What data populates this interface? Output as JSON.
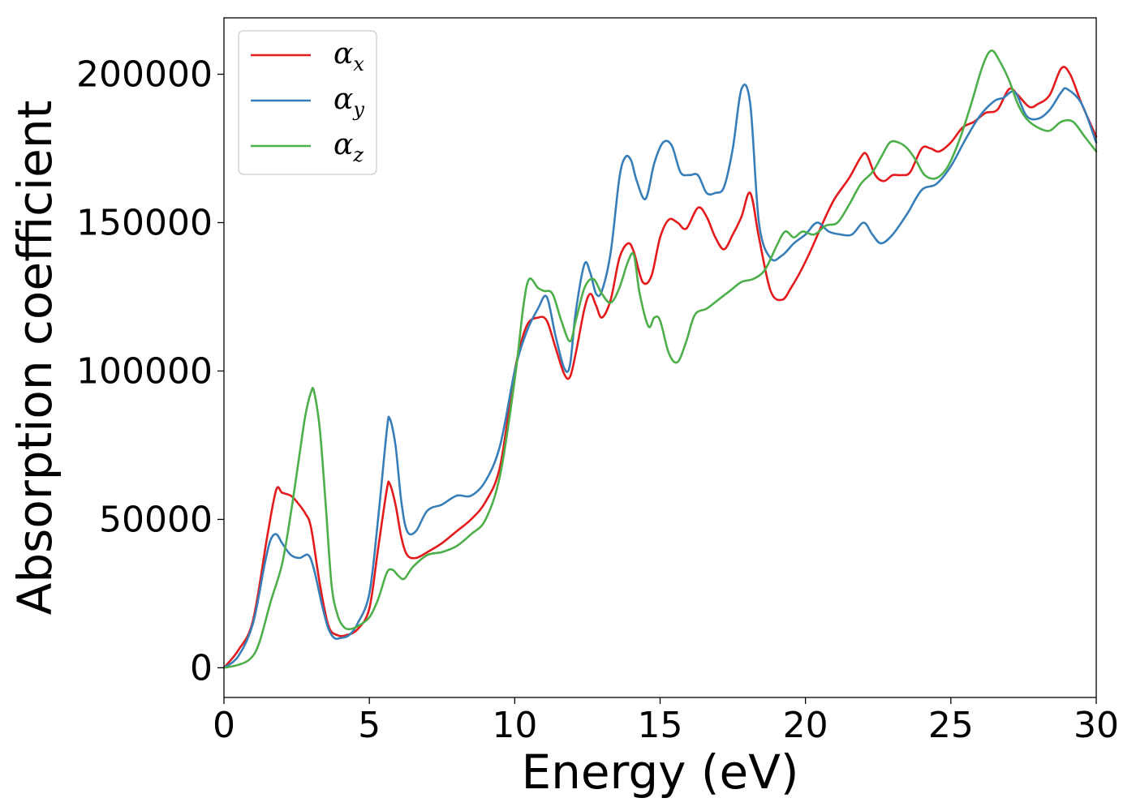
{
  "chart_data": {
    "type": "line",
    "title": "",
    "xlabel": "Energy (eV)",
    "ylabel": "Absorption coefficient",
    "xlim": [
      0,
      30
    ],
    "ylim": [
      -10000,
      219000
    ],
    "xticks": [
      0,
      5,
      10,
      15,
      20,
      25,
      30
    ],
    "yticks": [
      0,
      50000,
      100000,
      150000,
      200000
    ],
    "grid": false,
    "legend_position": "top-left",
    "series": [
      {
        "name": "αx",
        "symbol": "α",
        "subscript": "x",
        "color": "#e41a1c",
        "x": [
          0,
          0.5,
          1.0,
          1.5,
          1.8,
          2.0,
          2.3,
          2.5,
          2.8,
          3.0,
          3.3,
          3.6,
          3.9,
          4.2,
          4.6,
          5.0,
          5.3,
          5.6,
          5.7,
          5.9,
          6.1,
          6.3,
          6.6,
          7.0,
          7.5,
          8.0,
          8.5,
          9.0,
          9.5,
          10.0,
          10.4,
          10.8,
          11.1,
          11.4,
          11.7,
          11.9,
          12.1,
          12.4,
          12.6,
          12.8,
          13.0,
          13.3,
          13.6,
          13.9,
          14.1,
          14.4,
          14.7,
          15.0,
          15.3,
          15.6,
          15.9,
          16.3,
          16.6,
          16.9,
          17.2,
          17.5,
          17.8,
          18.1,
          18.4,
          18.8,
          19.2,
          19.5,
          19.8,
          20.2,
          20.6,
          21.0,
          21.5,
          21.9,
          22.1,
          22.4,
          22.7,
          23.0,
          23.3,
          23.6,
          24.0,
          24.3,
          24.6,
          25.0,
          25.4,
          25.8,
          26.2,
          26.6,
          27.0,
          27.3,
          27.7,
          28.0,
          28.4,
          28.8,
          29.1,
          29.5,
          30.0
        ],
        "y": [
          0,
          6000,
          16000,
          45000,
          60000,
          59000,
          58000,
          56000,
          52000,
          47000,
          28000,
          14000,
          11000,
          11000,
          13000,
          20000,
          40000,
          60000,
          62000,
          55000,
          44000,
          38000,
          37000,
          39000,
          42000,
          46000,
          50000,
          56000,
          68000,
          100000,
          115000,
          118000,
          117000,
          108000,
          99000,
          98000,
          106000,
          121000,
          126000,
          122000,
          118000,
          124000,
          138000,
          143000,
          140000,
          130000,
          132000,
          145000,
          151000,
          150000,
          148000,
          155000,
          152000,
          145000,
          141000,
          146000,
          152000,
          160000,
          145000,
          127000,
          124000,
          128000,
          133000,
          141000,
          150000,
          158000,
          165000,
          172000,
          173000,
          166000,
          164000,
          166000,
          166000,
          167000,
          175000,
          175000,
          174000,
          177000,
          182000,
          184000,
          187000,
          188000,
          195000,
          193000,
          189000,
          190000,
          193000,
          202000,
          200000,
          190000,
          179000
        ]
      },
      {
        "name": "αy",
        "symbol": "α",
        "subscript": "y",
        "color": "#377eb8",
        "x": [
          0,
          0.5,
          1.0,
          1.4,
          1.6,
          1.8,
          2.0,
          2.3,
          2.6,
          2.9,
          3.1,
          3.4,
          3.6,
          3.8,
          4.0,
          4.3,
          4.6,
          5.0,
          5.3,
          5.6,
          5.7,
          5.9,
          6.1,
          6.3,
          6.6,
          7.0,
          7.5,
          8.0,
          8.5,
          9.0,
          9.5,
          10.0,
          10.4,
          10.8,
          11.1,
          11.4,
          11.7,
          11.9,
          12.1,
          12.4,
          12.6,
          12.8,
          13.0,
          13.3,
          13.6,
          13.8,
          14.0,
          14.2,
          14.5,
          14.8,
          15.1,
          15.4,
          15.7,
          16.0,
          16.3,
          16.6,
          16.9,
          17.2,
          17.5,
          17.8,
          18.1,
          18.4,
          18.8,
          19.2,
          19.6,
          20.0,
          20.4,
          20.8,
          21.2,
          21.6,
          22.0,
          22.3,
          22.6,
          23.0,
          23.5,
          24.0,
          24.5,
          25.0,
          25.5,
          26.0,
          26.5,
          26.8,
          27.2,
          27.6,
          28.0,
          28.4,
          28.8,
          29.0,
          29.5,
          30.0
        ],
        "y": [
          0,
          4000,
          15000,
          35000,
          43000,
          45000,
          42000,
          38000,
          37000,
          38000,
          33000,
          20000,
          13000,
          10000,
          10000,
          11000,
          15000,
          25000,
          50000,
          80000,
          84000,
          75000,
          56000,
          46000,
          46000,
          53000,
          55000,
          58000,
          58000,
          63000,
          75000,
          100000,
          113000,
          121000,
          125000,
          112000,
          101000,
          102000,
          120000,
          136000,
          133000,
          126000,
          127000,
          140000,
          165000,
          172000,
          171000,
          164000,
          158000,
          170000,
          177000,
          176000,
          167000,
          166000,
          166000,
          160000,
          160000,
          162000,
          175000,
          195000,
          190000,
          150000,
          138000,
          139000,
          143000,
          146000,
          150000,
          147000,
          146000,
          146000,
          150000,
          146000,
          143000,
          146000,
          153000,
          161000,
          163000,
          169000,
          178000,
          186000,
          191000,
          192000,
          194000,
          186000,
          185000,
          188000,
          194000,
          195000,
          190000,
          177000
        ]
      },
      {
        "name": "αz",
        "symbol": "α",
        "subscript": "z",
        "color": "#4daf4a",
        "x": [
          0,
          0.5,
          0.9,
          1.2,
          1.6,
          2.0,
          2.3,
          2.6,
          2.8,
          3.0,
          3.1,
          3.3,
          3.5,
          3.7,
          3.9,
          4.1,
          4.3,
          4.6,
          5.0,
          5.3,
          5.6,
          5.8,
          6.0,
          6.2,
          6.5,
          7.0,
          7.5,
          8.0,
          8.5,
          9.0,
          9.5,
          10.0,
          10.3,
          10.5,
          10.8,
          11.0,
          11.3,
          11.6,
          11.9,
          12.1,
          12.4,
          12.7,
          13.0,
          13.3,
          13.6,
          13.9,
          14.1,
          14.3,
          14.6,
          14.8,
          15.0,
          15.3,
          15.6,
          15.9,
          16.2,
          16.6,
          17.0,
          17.4,
          17.8,
          18.2,
          18.6,
          19.0,
          19.3,
          19.6,
          19.9,
          20.3,
          20.7,
          21.1,
          21.5,
          21.9,
          22.3,
          22.6,
          22.9,
          23.2,
          23.5,
          23.8,
          24.1,
          24.5,
          24.9,
          25.3,
          25.7,
          26.1,
          26.4,
          26.7,
          27.0,
          27.3,
          27.6,
          28.0,
          28.4,
          28.8,
          29.2,
          29.6,
          30.0
        ],
        "y": [
          0,
          1000,
          3000,
          8000,
          22000,
          35000,
          52000,
          72000,
          85000,
          93000,
          93000,
          80000,
          55000,
          28000,
          18000,
          14000,
          13000,
          14000,
          17000,
          23000,
          32000,
          33000,
          31000,
          30000,
          34000,
          38000,
          39000,
          41000,
          45000,
          50000,
          65000,
          97000,
          122000,
          131000,
          128000,
          127000,
          126000,
          117000,
          110000,
          117000,
          128000,
          131000,
          126000,
          123000,
          128000,
          137000,
          139000,
          126000,
          115000,
          118000,
          117000,
          106000,
          103000,
          110000,
          119000,
          121000,
          124000,
          127000,
          130000,
          131000,
          134000,
          142000,
          147000,
          145000,
          147000,
          146000,
          149000,
          150000,
          156000,
          163000,
          167000,
          172000,
          177000,
          177000,
          175000,
          171000,
          166000,
          165000,
          169000,
          178000,
          190000,
          203000,
          208000,
          204000,
          198000,
          190000,
          185000,
          182000,
          181000,
          184000,
          184000,
          179000,
          174000
        ]
      }
    ]
  }
}
